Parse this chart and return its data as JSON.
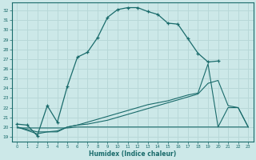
{
  "xlabel": "Humidex (Indice chaleur)",
  "bg_color": "#cce8e8",
  "line_color": "#1a6b6b",
  "grid_color": "#b8d8d8",
  "xlim": [
    -0.5,
    23.5
  ],
  "ylim": [
    18.5,
    32.8
  ],
  "yticks": [
    19,
    20,
    21,
    22,
    23,
    24,
    25,
    26,
    27,
    28,
    29,
    30,
    31,
    32
  ],
  "xticks": [
    0,
    1,
    2,
    3,
    4,
    5,
    6,
    7,
    8,
    9,
    10,
    11,
    12,
    13,
    14,
    15,
    16,
    17,
    18,
    19,
    20,
    21,
    22,
    23
  ],
  "curve1_x": [
    0,
    1,
    2,
    3,
    4,
    5,
    6,
    7,
    8,
    9,
    10,
    11,
    12,
    13,
    14,
    15,
    16,
    17,
    18,
    19,
    20,
    21,
    22,
    23
  ],
  "curve1_y": [
    20.3,
    20.2,
    19.1,
    22.2,
    20.5,
    24.2,
    27.2,
    27.7,
    29.2,
    31.3,
    32.1,
    32.3,
    32.3,
    31.9,
    31.6,
    30.7,
    30.6,
    29.1,
    27.6,
    26.7,
    26.8,
    null,
    null,
    null
  ],
  "curve1_no_marker_x": [
    0,
    1,
    2,
    3,
    4,
    5,
    6,
    7,
    8,
    9,
    10,
    11,
    12,
    13,
    14,
    15,
    16,
    17,
    18,
    19,
    20
  ],
  "curve2_x": [
    0,
    1,
    2,
    3,
    4,
    5,
    6,
    7,
    8,
    9,
    10,
    11,
    12,
    13,
    14,
    15,
    16,
    17,
    18,
    19,
    20,
    21,
    22,
    23
  ],
  "curve2_y": [
    19.9,
    19.9,
    19.9,
    19.9,
    19.9,
    19.9,
    20.0,
    20.0,
    20.0,
    20.0,
    20.0,
    20.0,
    20.0,
    20.0,
    20.0,
    20.0,
    20.0,
    20.0,
    20.0,
    20.0,
    20.0,
    20.0,
    20.0,
    20.0
  ],
  "curve3_x": [
    0,
    2,
    3,
    4,
    5,
    6,
    7,
    8,
    9,
    10,
    11,
    12,
    13,
    14,
    15,
    16,
    17,
    18,
    19,
    20,
    21,
    22,
    23
  ],
  "curve3_y": [
    20.0,
    19.5,
    19.5,
    19.5,
    20.0,
    20.2,
    20.3,
    20.5,
    20.7,
    21.0,
    21.3,
    21.6,
    21.9,
    22.2,
    22.5,
    22.8,
    23.1,
    23.4,
    24.5,
    24.8,
    22.2,
    22.0,
    20.0
  ],
  "curve4_x": [
    0,
    2,
    3,
    4,
    5,
    6,
    7,
    8,
    9,
    10,
    11,
    12,
    13,
    14,
    15,
    16,
    17,
    18,
    19,
    20,
    21,
    22,
    23
  ],
  "curve4_y": [
    20.0,
    19.3,
    19.5,
    19.6,
    20.0,
    20.2,
    20.5,
    20.8,
    21.1,
    21.4,
    21.7,
    22.0,
    22.3,
    22.5,
    22.7,
    23.0,
    23.3,
    23.5,
    26.5,
    20.0,
    22.0,
    22.0,
    20.0
  ]
}
